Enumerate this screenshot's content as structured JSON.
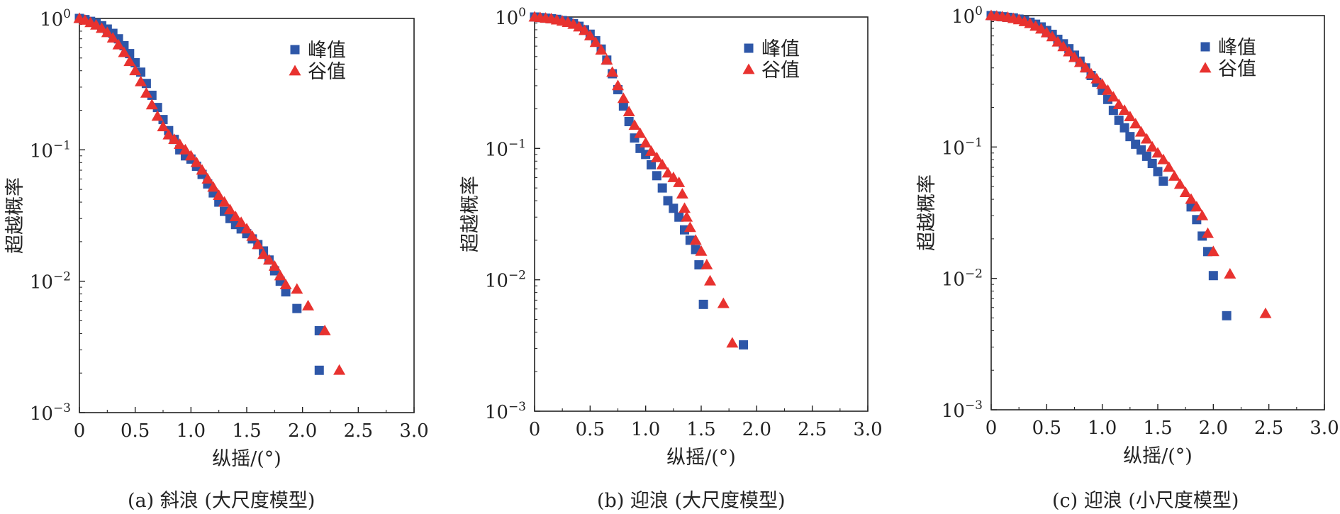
{
  "colors": {
    "peak": "#2e57a8",
    "trough": "#e8322f",
    "axis": "#222222"
  },
  "chart_data": [
    {
      "type": "scatter",
      "caption": "(a) 斜浪 (大尺度模型)",
      "xlabel": "纵摇/(°)",
      "ylabel": "超越概率",
      "xlim": [
        0,
        3.0
      ],
      "ylim": [
        0.001,
        1
      ],
      "y_scale": "log",
      "x_ticks": [
        "0",
        "0.5",
        "1.0",
        "1.5",
        "2.0",
        "2.5",
        "3.0"
      ],
      "y_ticks": [
        {
          "base": "10",
          "exp": "0"
        },
        {
          "base": "10",
          "exp": "−1"
        },
        {
          "base": "10",
          "exp": "−2"
        },
        {
          "base": "10",
          "exp": "−3"
        }
      ],
      "legend_position": "top-right",
      "series": [
        {
          "name": "峰值",
          "marker": "square",
          "color": "#2e57a8",
          "x": [
            0.0,
            0.05,
            0.1,
            0.15,
            0.2,
            0.25,
            0.3,
            0.35,
            0.4,
            0.45,
            0.5,
            0.55,
            0.6,
            0.65,
            0.7,
            0.75,
            0.8,
            0.85,
            0.9,
            0.95,
            1.0,
            1.05,
            1.1,
            1.15,
            1.2,
            1.25,
            1.3,
            1.35,
            1.4,
            1.45,
            1.5,
            1.55,
            1.6,
            1.65,
            1.7,
            1.75,
            1.8,
            1.85,
            1.95,
            2.15,
            2.15
          ],
          "y": [
            1.0,
            0.98,
            0.95,
            0.92,
            0.88,
            0.83,
            0.77,
            0.7,
            0.62,
            0.54,
            0.46,
            0.39,
            0.32,
            0.26,
            0.21,
            0.17,
            0.14,
            0.12,
            0.1,
            0.09,
            0.085,
            0.075,
            0.065,
            0.055,
            0.047,
            0.04,
            0.034,
            0.03,
            0.027,
            0.025,
            0.023,
            0.021,
            0.019,
            0.017,
            0.0145,
            0.012,
            0.01,
            0.0083,
            0.0062,
            0.0042,
            0.0021
          ]
        },
        {
          "name": "谷值",
          "marker": "triangle",
          "color": "#e8322f",
          "x": [
            0.0,
            0.05,
            0.1,
            0.15,
            0.2,
            0.25,
            0.3,
            0.35,
            0.4,
            0.45,
            0.5,
            0.55,
            0.6,
            0.65,
            0.7,
            0.75,
            0.8,
            0.85,
            0.9,
            0.95,
            1.0,
            1.05,
            1.1,
            1.15,
            1.2,
            1.25,
            1.3,
            1.35,
            1.4,
            1.45,
            1.5,
            1.55,
            1.6,
            1.65,
            1.7,
            1.75,
            1.8,
            1.85,
            1.95,
            2.05,
            2.2,
            2.33
          ],
          "y": [
            1.0,
            0.97,
            0.93,
            0.89,
            0.84,
            0.78,
            0.71,
            0.63,
            0.55,
            0.47,
            0.4,
            0.33,
            0.27,
            0.22,
            0.18,
            0.15,
            0.13,
            0.12,
            0.11,
            0.1,
            0.09,
            0.08,
            0.07,
            0.06,
            0.052,
            0.045,
            0.04,
            0.035,
            0.031,
            0.028,
            0.025,
            0.022,
            0.019,
            0.016,
            0.0145,
            0.013,
            0.011,
            0.0094,
            0.0087,
            0.0065,
            0.0042,
            0.0021
          ]
        }
      ]
    },
    {
      "type": "scatter",
      "caption": "(b) 迎浪 (大尺度模型)",
      "xlabel": "纵摇/(°)",
      "ylabel": "超越概率",
      "xlim": [
        0,
        3.0
      ],
      "ylim": [
        0.001,
        1
      ],
      "y_scale": "log",
      "x_ticks": [
        "0",
        "0.5",
        "1.0",
        "1.5",
        "2.0",
        "2.5",
        "3.0"
      ],
      "y_ticks": [
        {
          "base": "10",
          "exp": "0"
        },
        {
          "base": "10",
          "exp": "−1"
        },
        {
          "base": "10",
          "exp": "−2"
        },
        {
          "base": "10",
          "exp": "−3"
        }
      ],
      "legend_position": "top-right",
      "series": [
        {
          "name": "峰值",
          "marker": "square",
          "color": "#2e57a8",
          "x": [
            0.0,
            0.05,
            0.1,
            0.15,
            0.2,
            0.25,
            0.3,
            0.35,
            0.4,
            0.45,
            0.5,
            0.55,
            0.6,
            0.65,
            0.7,
            0.75,
            0.8,
            0.85,
            0.9,
            0.95,
            1.0,
            1.05,
            1.1,
            1.15,
            1.2,
            1.25,
            1.3,
            1.35,
            1.4,
            1.45,
            1.48,
            1.52,
            1.88
          ],
          "y": [
            1.0,
            0.99,
            0.98,
            0.97,
            0.96,
            0.94,
            0.92,
            0.89,
            0.85,
            0.8,
            0.74,
            0.66,
            0.57,
            0.47,
            0.37,
            0.28,
            0.21,
            0.16,
            0.12,
            0.1,
            0.09,
            0.075,
            0.062,
            0.05,
            0.04,
            0.035,
            0.03,
            0.024,
            0.02,
            0.017,
            0.013,
            0.0065,
            0.0032
          ]
        },
        {
          "name": "谷值",
          "marker": "triangle",
          "color": "#e8322f",
          "x": [
            0.0,
            0.05,
            0.1,
            0.15,
            0.2,
            0.25,
            0.3,
            0.35,
            0.4,
            0.45,
            0.5,
            0.55,
            0.6,
            0.65,
            0.7,
            0.75,
            0.8,
            0.85,
            0.9,
            0.95,
            1.0,
            1.05,
            1.1,
            1.15,
            1.2,
            1.25,
            1.3,
            1.33,
            1.35,
            1.37,
            1.4,
            1.45,
            1.5,
            1.55,
            1.58,
            1.7,
            1.78
          ],
          "y": [
            1.0,
            0.99,
            0.98,
            0.97,
            0.95,
            0.93,
            0.91,
            0.88,
            0.84,
            0.79,
            0.72,
            0.64,
            0.56,
            0.47,
            0.38,
            0.3,
            0.24,
            0.19,
            0.15,
            0.13,
            0.11,
            0.095,
            0.085,
            0.075,
            0.065,
            0.06,
            0.055,
            0.045,
            0.035,
            0.03,
            0.025,
            0.02,
            0.0165,
            0.013,
            0.0098,
            0.0066,
            0.0033
          ]
        }
      ]
    },
    {
      "type": "scatter",
      "caption": "(c) 迎浪 (小尺度模型)",
      "xlabel": "纵摇/(°)",
      "ylabel": "超越概率",
      "xlim": [
        0,
        3.0
      ],
      "ylim": [
        0.001,
        1
      ],
      "y_scale": "log",
      "x_ticks": [
        "0",
        "0.5",
        "1.0",
        "1.5",
        "2.0",
        "2.5",
        "3.0"
      ],
      "y_ticks": [
        {
          "base": "10",
          "exp": "0"
        },
        {
          "base": "10",
          "exp": "−1"
        },
        {
          "base": "10",
          "exp": "−2"
        },
        {
          "base": "10",
          "exp": "−3"
        }
      ],
      "legend_position": "top-right",
      "series": [
        {
          "name": "峰值",
          "marker": "square",
          "color": "#2e57a8",
          "x": [
            0.0,
            0.05,
            0.1,
            0.15,
            0.2,
            0.25,
            0.3,
            0.35,
            0.4,
            0.45,
            0.5,
            0.55,
            0.6,
            0.65,
            0.7,
            0.75,
            0.8,
            0.85,
            0.9,
            0.95,
            1.0,
            1.05,
            1.1,
            1.15,
            1.2,
            1.25,
            1.3,
            1.35,
            1.4,
            1.45,
            1.5,
            1.55,
            1.8,
            1.85,
            1.9,
            1.95,
            2.0,
            2.12
          ],
          "y": [
            1.0,
            0.99,
            0.98,
            0.97,
            0.96,
            0.94,
            0.92,
            0.89,
            0.86,
            0.82,
            0.77,
            0.72,
            0.66,
            0.61,
            0.56,
            0.5,
            0.45,
            0.4,
            0.35,
            0.31,
            0.27,
            0.23,
            0.19,
            0.16,
            0.14,
            0.12,
            0.105,
            0.095,
            0.085,
            0.075,
            0.065,
            0.055,
            0.035,
            0.028,
            0.021,
            0.016,
            0.0105,
            0.0052
          ]
        },
        {
          "name": "谷值",
          "marker": "triangle",
          "color": "#e8322f",
          "x": [
            0.0,
            0.05,
            0.1,
            0.15,
            0.2,
            0.25,
            0.3,
            0.35,
            0.4,
            0.45,
            0.5,
            0.55,
            0.6,
            0.65,
            0.7,
            0.75,
            0.8,
            0.85,
            0.9,
            0.95,
            1.0,
            1.05,
            1.1,
            1.15,
            1.2,
            1.25,
            1.3,
            1.35,
            1.4,
            1.45,
            1.5,
            1.55,
            1.6,
            1.65,
            1.7,
            1.75,
            1.8,
            1.85,
            1.9,
            1.95,
            2.0,
            2.15,
            2.47
          ],
          "y": [
            1.0,
            0.99,
            0.98,
            0.97,
            0.95,
            0.93,
            0.9,
            0.87,
            0.83,
            0.79,
            0.74,
            0.69,
            0.63,
            0.58,
            0.53,
            0.48,
            0.44,
            0.4,
            0.36,
            0.33,
            0.3,
            0.27,
            0.24,
            0.21,
            0.19,
            0.17,
            0.15,
            0.13,
            0.115,
            0.1,
            0.09,
            0.08,
            0.07,
            0.06,
            0.052,
            0.045,
            0.04,
            0.035,
            0.03,
            0.022,
            0.016,
            0.0108,
            0.0054
          ]
        }
      ]
    }
  ]
}
